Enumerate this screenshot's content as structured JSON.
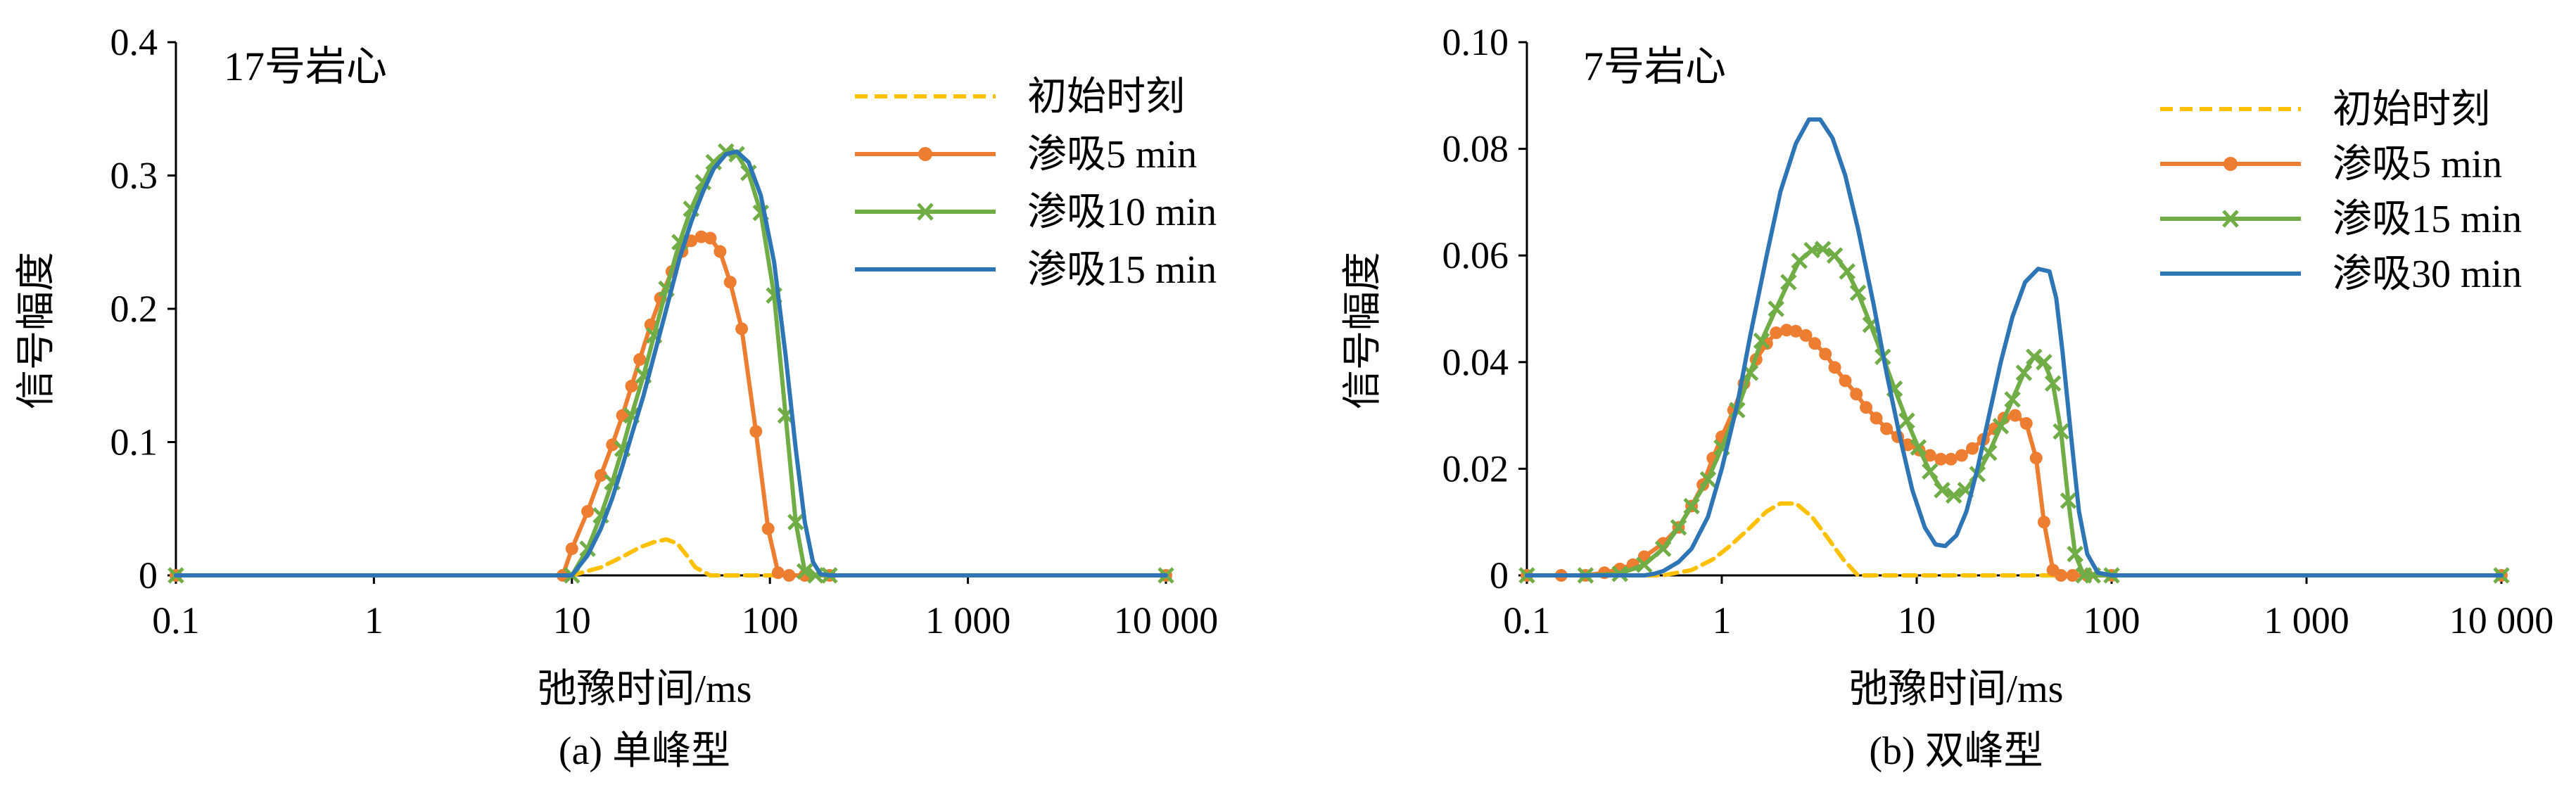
{
  "chart_data": [
    {
      "type": "line",
      "panel_label": "17号岩心",
      "caption": "(a) 单峰型",
      "xlabel": "弛豫时间/ms",
      "ylabel": "信号幅度",
      "x_scale": "log",
      "xlim": [
        0.1,
        10000
      ],
      "ylim": [
        0,
        0.4
      ],
      "x_tick_labels": [
        "0.1",
        "1",
        "10",
        "100",
        "1 000",
        "10 000"
      ],
      "y_tick_labels": [
        "0",
        "0.1",
        "0.2",
        "0.3",
        "0.4"
      ],
      "legend_position": "top-right",
      "series": [
        {
          "name": "初始时刻",
          "color": "#FFC000",
          "style": "dashed",
          "marker": "none",
          "x": [
            0.1,
            10,
            14,
            18,
            22,
            26,
            30,
            34,
            38,
            42,
            50,
            100,
            10000
          ],
          "y": [
            0,
            0,
            0.006,
            0.014,
            0.021,
            0.025,
            0.027,
            0.024,
            0.015,
            0.006,
            0,
            0,
            0
          ]
        },
        {
          "name": "渗吸5 min",
          "color": "#ED7D31",
          "style": "solid",
          "marker": "circle",
          "x": [
            0.1,
            9,
            10,
            12,
            14,
            16,
            18,
            20,
            22,
            25,
            28,
            32,
            36,
            40,
            45,
            50,
            56,
            63,
            72,
            85,
            98,
            110,
            125,
            150,
            200,
            10000
          ],
          "y": [
            0,
            0,
            0.02,
            0.048,
            0.075,
            0.098,
            0.12,
            0.142,
            0.162,
            0.188,
            0.208,
            0.228,
            0.243,
            0.251,
            0.254,
            0.253,
            0.243,
            0.22,
            0.185,
            0.108,
            0.035,
            0.002,
            0,
            0,
            0,
            0
          ]
        },
        {
          "name": "渗吸10 min",
          "color": "#70AD47",
          "style": "solid",
          "marker": "x",
          "x": [
            0.1,
            10,
            12,
            14,
            16,
            18,
            20,
            23,
            26,
            30,
            35,
            40,
            46,
            52,
            60,
            68,
            78,
            90,
            105,
            120,
            135,
            150,
            170,
            200,
            10000
          ],
          "y": [
            0,
            0,
            0.02,
            0.045,
            0.07,
            0.095,
            0.12,
            0.15,
            0.18,
            0.215,
            0.25,
            0.275,
            0.295,
            0.31,
            0.318,
            0.316,
            0.302,
            0.272,
            0.21,
            0.12,
            0.04,
            0.003,
            0,
            0,
            0
          ]
        },
        {
          "name": "渗吸15 min",
          "color": "#2E75B6",
          "style": "solid",
          "marker": "none",
          "x": [
            0.1,
            10,
            12,
            14,
            16,
            18,
            20,
            23,
            26,
            30,
            35,
            40,
            46,
            52,
            60,
            68,
            78,
            90,
            105,
            120,
            135,
            150,
            165,
            180,
            200,
            10000
          ],
          "y": [
            0,
            0,
            0.015,
            0.035,
            0.058,
            0.082,
            0.105,
            0.135,
            0.165,
            0.2,
            0.238,
            0.265,
            0.288,
            0.305,
            0.316,
            0.318,
            0.31,
            0.285,
            0.235,
            0.165,
            0.095,
            0.04,
            0.01,
            0.001,
            0,
            0
          ]
        }
      ]
    },
    {
      "type": "line",
      "panel_label": "7号岩心",
      "caption": "(b) 双峰型",
      "xlabel": "弛豫时间/ms",
      "ylabel": "信号幅度",
      "x_scale": "log",
      "xlim": [
        0.1,
        10000
      ],
      "ylim": [
        0,
        0.1
      ],
      "x_tick_labels": [
        "0.1",
        "1",
        "10",
        "100",
        "1 000",
        "10 000"
      ],
      "y_tick_labels": [
        "0",
        "0.02",
        "0.04",
        "0.06",
        "0.08",
        "0.10"
      ],
      "legend_position": "top-right",
      "series": [
        {
          "name": "初始时刻",
          "color": "#FFC000",
          "style": "dashed",
          "marker": "none",
          "x": [
            0.1,
            0.5,
            0.7,
            0.9,
            1.1,
            1.4,
            1.7,
            2.0,
            2.4,
            2.9,
            3.5,
            4.2,
            5.0,
            10000
          ],
          "y": [
            0,
            0,
            0.001,
            0.003,
            0.0055,
            0.009,
            0.012,
            0.0135,
            0.0135,
            0.011,
            0.007,
            0.003,
            0,
            0
          ]
        },
        {
          "name": "渗吸5 min",
          "color": "#ED7D31",
          "style": "solid",
          "marker": "circle",
          "x": [
            0.1,
            0.15,
            0.2,
            0.25,
            0.3,
            0.35,
            0.4,
            0.5,
            0.6,
            0.7,
            0.8,
            0.9,
            1.0,
            1.15,
            1.3,
            1.5,
            1.7,
            1.9,
            2.15,
            2.4,
            2.7,
            3.0,
            3.4,
            3.8,
            4.3,
            4.9,
            5.5,
            6.2,
            7.0,
            8.0,
            9.0,
            10.3,
            11.7,
            13.3,
            15,
            17,
            19.3,
            22,
            25,
            28,
            32,
            36.5,
            41,
            45,
            50,
            55,
            63,
            75,
            100,
            10000
          ],
          "y": [
            0,
            0,
            0,
            0.0005,
            0.0012,
            0.002,
            0.0035,
            0.006,
            0.009,
            0.013,
            0.017,
            0.022,
            0.026,
            0.031,
            0.036,
            0.0405,
            0.0435,
            0.0455,
            0.046,
            0.0458,
            0.045,
            0.0435,
            0.0415,
            0.039,
            0.0365,
            0.034,
            0.0315,
            0.0295,
            0.0275,
            0.026,
            0.0245,
            0.0235,
            0.0225,
            0.0218,
            0.0218,
            0.0225,
            0.0238,
            0.0255,
            0.0275,
            0.0295,
            0.03,
            0.0285,
            0.022,
            0.01,
            0.001,
            0,
            0,
            0,
            0,
            0
          ]
        },
        {
          "name": "渗吸15 min",
          "color": "#70AD47",
          "style": "solid",
          "marker": "x",
          "x": [
            0.1,
            0.2,
            0.3,
            0.4,
            0.5,
            0.6,
            0.7,
            0.85,
            1.0,
            1.2,
            1.4,
            1.6,
            1.9,
            2.2,
            2.5,
            2.9,
            3.3,
            3.8,
            4.4,
            5.0,
            5.8,
            6.7,
            7.7,
            8.9,
            10.2,
            11.7,
            13.5,
            15.5,
            17.8,
            20.5,
            23.5,
            27,
            31,
            35.5,
            40,
            45,
            50,
            55,
            60,
            65,
            72,
            80,
            100,
            10000
          ],
          "y": [
            0,
            0,
            0.0003,
            0.002,
            0.005,
            0.009,
            0.013,
            0.018,
            0.024,
            0.031,
            0.038,
            0.044,
            0.05,
            0.055,
            0.059,
            0.061,
            0.0612,
            0.06,
            0.057,
            0.053,
            0.047,
            0.041,
            0.035,
            0.029,
            0.024,
            0.0195,
            0.016,
            0.015,
            0.016,
            0.019,
            0.023,
            0.028,
            0.033,
            0.038,
            0.041,
            0.04,
            0.036,
            0.027,
            0.014,
            0.004,
            0,
            0,
            0,
            0
          ]
        },
        {
          "name": "渗吸30 min",
          "color": "#2E75B6",
          "style": "solid",
          "marker": "none",
          "x": [
            0.1,
            0.4,
            0.45,
            0.5,
            0.6,
            0.7,
            0.85,
            1.0,
            1.2,
            1.4,
            1.7,
            2.0,
            2.4,
            2.8,
            3.2,
            3.7,
            4.3,
            5.0,
            6.0,
            7.0,
            8.2,
            9.5,
            11,
            12.5,
            14,
            16,
            18,
            20.5,
            23.5,
            27,
            31,
            36,
            42,
            48,
            52,
            56,
            62,
            68,
            75,
            85,
            100,
            10000
          ],
          "y": [
            0,
            0,
            0.0003,
            0.0008,
            0.0025,
            0.005,
            0.011,
            0.02,
            0.032,
            0.045,
            0.06,
            0.072,
            0.081,
            0.0855,
            0.0855,
            0.082,
            0.075,
            0.065,
            0.051,
            0.038,
            0.026,
            0.016,
            0.009,
            0.0058,
            0.0055,
            0.0075,
            0.012,
            0.02,
            0.03,
            0.04,
            0.0485,
            0.055,
            0.0575,
            0.057,
            0.052,
            0.042,
            0.026,
            0.012,
            0.004,
            0.0005,
            0,
            0
          ]
        }
      ]
    }
  ]
}
